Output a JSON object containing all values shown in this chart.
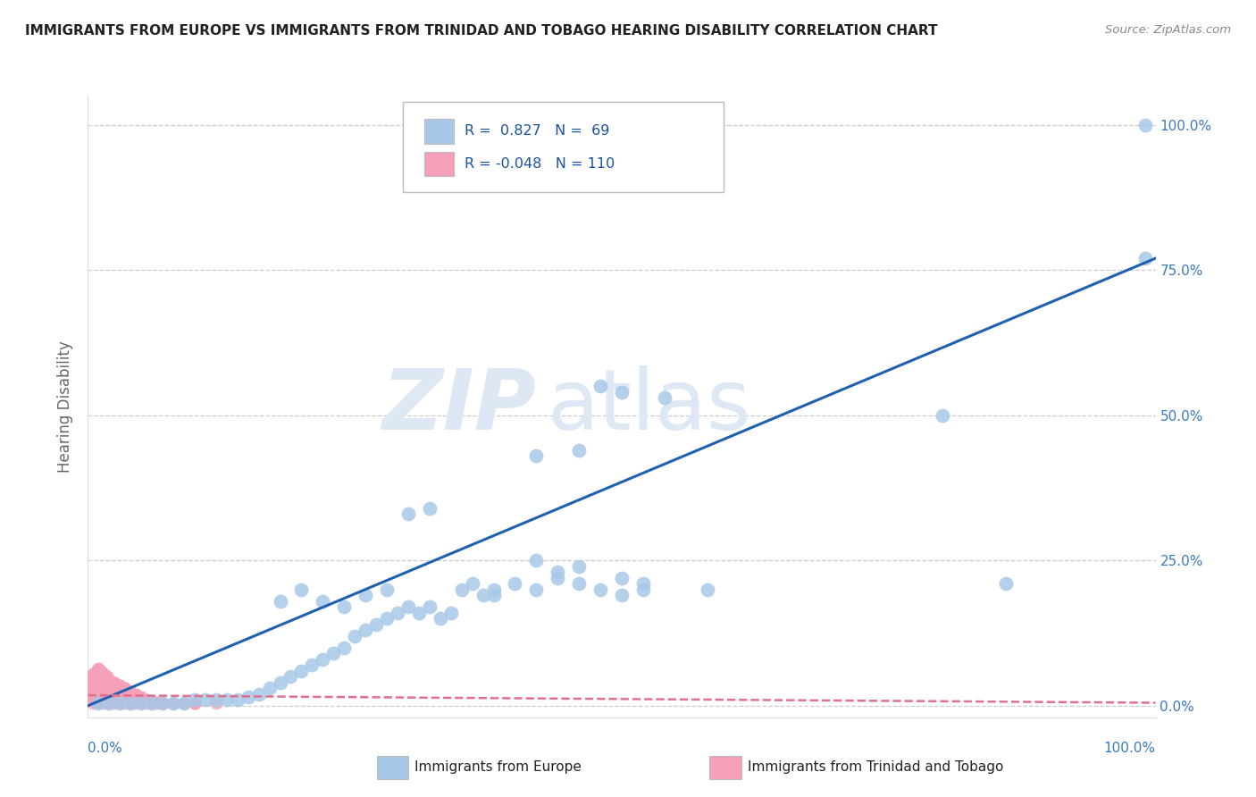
{
  "title": "IMMIGRANTS FROM EUROPE VS IMMIGRANTS FROM TRINIDAD AND TOBAGO HEARING DISABILITY CORRELATION CHART",
  "source": "Source: ZipAtlas.com",
  "ylabel": "Hearing Disability",
  "ytick_labels": [
    "0.0%",
    "25.0%",
    "50.0%",
    "75.0%",
    "100.0%"
  ],
  "ytick_values": [
    0.0,
    0.25,
    0.5,
    0.75,
    1.0
  ],
  "xlim": [
    0.0,
    1.0
  ],
  "ylim": [
    -0.02,
    1.05
  ],
  "blue_R": 0.827,
  "blue_N": 69,
  "pink_R": -0.048,
  "pink_N": 110,
  "blue_color": "#a8c8e8",
  "pink_color": "#f4a0b8",
  "blue_line_color": "#2060b0",
  "pink_line_color": "#e07090",
  "watermark_zip": "ZIP",
  "watermark_atlas": "atlas",
  "blue_scatter_x": [
    0.01,
    0.02,
    0.03,
    0.04,
    0.05,
    0.06,
    0.07,
    0.08,
    0.09,
    0.1,
    0.11,
    0.12,
    0.13,
    0.14,
    0.15,
    0.16,
    0.17,
    0.18,
    0.19,
    0.2,
    0.21,
    0.22,
    0.23,
    0.24,
    0.25,
    0.26,
    0.27,
    0.28,
    0.29,
    0.3,
    0.31,
    0.32,
    0.33,
    0.34,
    0.35,
    0.36,
    0.37,
    0.38,
    0.4,
    0.42,
    0.44,
    0.46,
    0.48,
    0.5,
    0.52,
    0.42,
    0.44,
    0.46,
    0.5,
    0.52,
    0.3,
    0.32,
    0.38,
    0.42,
    0.46,
    0.5,
    0.54,
    0.58,
    0.8,
    0.86,
    0.18,
    0.2,
    0.22,
    0.24,
    0.26,
    0.28,
    0.48,
    0.99,
    0.99
  ],
  "blue_scatter_y": [
    0.005,
    0.005,
    0.005,
    0.005,
    0.005,
    0.005,
    0.005,
    0.005,
    0.005,
    0.01,
    0.01,
    0.01,
    0.01,
    0.01,
    0.015,
    0.02,
    0.03,
    0.04,
    0.05,
    0.06,
    0.07,
    0.08,
    0.09,
    0.1,
    0.12,
    0.13,
    0.14,
    0.15,
    0.16,
    0.17,
    0.16,
    0.17,
    0.15,
    0.16,
    0.2,
    0.21,
    0.19,
    0.2,
    0.21,
    0.2,
    0.22,
    0.21,
    0.2,
    0.19,
    0.21,
    0.25,
    0.23,
    0.24,
    0.22,
    0.2,
    0.33,
    0.34,
    0.19,
    0.43,
    0.44,
    0.54,
    0.53,
    0.2,
    0.5,
    0.21,
    0.18,
    0.2,
    0.18,
    0.17,
    0.19,
    0.2,
    0.55,
    0.77,
    1.0
  ],
  "pink_scatter_x": [
    0.005,
    0.005,
    0.005,
    0.005,
    0.005,
    0.005,
    0.005,
    0.005,
    0.005,
    0.005,
    0.01,
    0.01,
    0.01,
    0.01,
    0.01,
    0.01,
    0.01,
    0.01,
    0.01,
    0.01,
    0.015,
    0.015,
    0.015,
    0.015,
    0.015,
    0.015,
    0.015,
    0.015,
    0.015,
    0.015,
    0.02,
    0.02,
    0.02,
    0.02,
    0.02,
    0.02,
    0.02,
    0.02,
    0.02,
    0.02,
    0.025,
    0.025,
    0.025,
    0.025,
    0.025,
    0.025,
    0.025,
    0.025,
    0.025,
    0.025,
    0.03,
    0.03,
    0.03,
    0.03,
    0.03,
    0.035,
    0.035,
    0.035,
    0.04,
    0.04,
    0.045,
    0.05,
    0.055,
    0.06,
    0.065,
    0.07,
    0.08,
    0.09,
    0.1,
    0.12,
    0.005,
    0.008,
    0.01,
    0.012,
    0.015,
    0.018,
    0.02,
    0.025,
    0.03,
    0.035,
    0.04,
    0.045,
    0.05,
    0.055,
    0.06,
    0.065,
    0.07,
    0.08,
    0.09,
    0.1,
    0.005,
    0.008,
    0.01,
    0.012,
    0.015,
    0.018,
    0.02,
    0.025,
    0.03,
    0.035,
    0.04,
    0.045,
    0.05,
    0.055,
    0.06,
    0.065,
    0.07,
    0.08,
    0.09,
    0.1
  ],
  "pink_scatter_y": [
    0.005,
    0.01,
    0.015,
    0.02,
    0.025,
    0.03,
    0.035,
    0.04,
    0.045,
    0.05,
    0.005,
    0.008,
    0.01,
    0.012,
    0.015,
    0.02,
    0.025,
    0.03,
    0.035,
    0.04,
    0.005,
    0.008,
    0.01,
    0.012,
    0.015,
    0.02,
    0.025,
    0.03,
    0.035,
    0.04,
    0.005,
    0.008,
    0.01,
    0.012,
    0.015,
    0.02,
    0.025,
    0.03,
    0.035,
    0.04,
    0.005,
    0.008,
    0.01,
    0.012,
    0.015,
    0.02,
    0.025,
    0.03,
    0.035,
    0.04,
    0.005,
    0.008,
    0.01,
    0.012,
    0.015,
    0.005,
    0.008,
    0.01,
    0.005,
    0.008,
    0.005,
    0.005,
    0.005,
    0.005,
    0.005,
    0.005,
    0.005,
    0.005,
    0.005,
    0.005,
    0.055,
    0.06,
    0.065,
    0.06,
    0.055,
    0.05,
    0.045,
    0.04,
    0.035,
    0.03,
    0.025,
    0.02,
    0.015,
    0.01,
    0.008,
    0.006,
    0.005,
    0.005,
    0.005,
    0.005,
    0.055,
    0.06,
    0.065,
    0.06,
    0.055,
    0.05,
    0.045,
    0.04,
    0.035,
    0.03,
    0.025,
    0.02,
    0.015,
    0.01,
    0.008,
    0.006,
    0.005,
    0.005,
    0.005,
    0.005
  ],
  "blue_line_x": [
    0.0,
    1.0
  ],
  "blue_line_y": [
    0.0,
    0.77
  ],
  "pink_line_x": [
    0.0,
    1.0
  ],
  "pink_line_y": [
    0.018,
    0.005
  ]
}
